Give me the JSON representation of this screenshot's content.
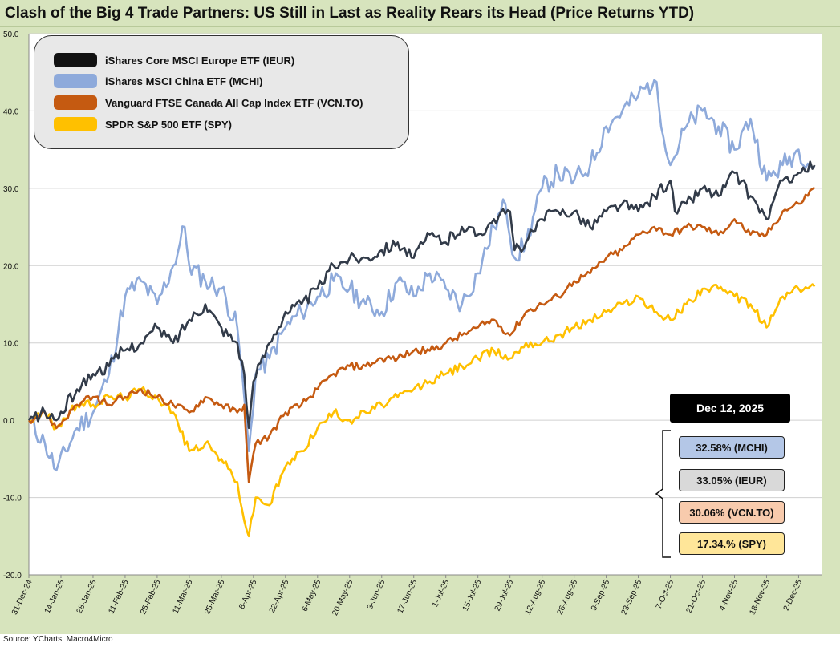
{
  "title": "Clash of the Big 4 Trade Partners: US Still in Last as Reality Rears its Head (Price Returns YTD)",
  "source": "Source: YCharts, Macro4Micro",
  "date_label": "Dec 12, 2025",
  "value_boxes": [
    {
      "text": "32.58% (MCHI)",
      "color": "#b4c7e7"
    },
    {
      "text": "33.05% (IEUR)",
      "color": "#d9d9d9"
    },
    {
      "text": "30.06% (VCN.TO)",
      "color": "#f8cbad"
    },
    {
      "text": "17.34.% (SPY)",
      "color": "#ffe699"
    }
  ],
  "colors": {
    "background": "#d7e4bd",
    "plot": "#ffffff",
    "IEUR": "#323b49",
    "MCHI": "#8eaadb",
    "VCN": "#c55a11",
    "SPY": "#ffc000"
  },
  "chart_data": {
    "type": "line",
    "title": "Clash of the Big 4 Trade Partners: US Still in Last as Reality Rears its Head (Price Returns YTD)",
    "x_ticks": [
      "31-Dec-24",
      "14-Jan-25",
      "28-Jan-25",
      "11-Feb-25",
      "25-Feb-25",
      "11-Mar-25",
      "25-Mar-25",
      "8-Apr-25",
      "22-Apr-25",
      "6-May-25",
      "20-May-25",
      "3-Jun-25",
      "17-Jun-25",
      "1-Jul-25",
      "15-Jul-25",
      "29-Jul-25",
      "12-Aug-25",
      "26-Aug-25",
      "9-Sep-25",
      "23-Sep-25",
      "7-Oct-25",
      "21-Oct-25",
      "4-Nov-25",
      "18-Nov-25",
      "2-Dec-25"
    ],
    "x_end": "12-Dec-25",
    "y_ticks": [
      "-20.0",
      "-10.0",
      "0.0",
      "10.0",
      "20.0",
      "30.0",
      "40.0",
      "50.0"
    ],
    "ylim": [
      -20,
      50
    ],
    "grid": true,
    "legend_position": "top-left",
    "series": [
      {
        "name": "iShares Core MSCI Europe ETF (IEUR)",
        "key": "IEUR",
        "points": [
          [
            0,
            0
          ],
          [
            7,
            1
          ],
          [
            12,
            0
          ],
          [
            21,
            4
          ],
          [
            28,
            6
          ],
          [
            35,
            7
          ],
          [
            41,
            9
          ],
          [
            49,
            10
          ],
          [
            56,
            12
          ],
          [
            63,
            10
          ],
          [
            70,
            13
          ],
          [
            77,
            15
          ],
          [
            84,
            12
          ],
          [
            91,
            10
          ],
          [
            94,
            6
          ],
          [
            96,
            -1
          ],
          [
            98,
            5
          ],
          [
            105,
            10
          ],
          [
            112,
            14
          ],
          [
            119,
            15
          ],
          [
            126,
            17
          ],
          [
            133,
            20
          ],
          [
            140,
            21
          ],
          [
            147,
            21
          ],
          [
            154,
            22
          ],
          [
            161,
            23
          ],
          [
            168,
            21
          ],
          [
            175,
            24
          ],
          [
            182,
            23
          ],
          [
            189,
            25
          ],
          [
            196,
            24
          ],
          [
            203,
            26
          ],
          [
            210,
            27
          ],
          [
            212,
            22
          ],
          [
            217,
            23
          ],
          [
            224,
            26
          ],
          [
            231,
            27
          ],
          [
            238,
            27
          ],
          [
            245,
            25
          ],
          [
            252,
            27
          ],
          [
            259,
            28
          ],
          [
            266,
            27
          ],
          [
            273,
            29
          ],
          [
            280,
            31
          ],
          [
            282,
            27
          ],
          [
            287,
            28
          ],
          [
            294,
            30
          ],
          [
            301,
            29
          ],
          [
            308,
            32
          ],
          [
            315,
            29
          ],
          [
            322,
            26
          ],
          [
            329,
            31
          ],
          [
            336,
            32
          ],
          [
            343,
            33
          ]
        ]
      },
      {
        "name": "iShares MSCI China ETF (MCHI)",
        "key": "MCHI",
        "points": [
          [
            0,
            0
          ],
          [
            7,
            -3
          ],
          [
            12,
            -6.5
          ],
          [
            21,
            -1
          ],
          [
            28,
            1
          ],
          [
            35,
            6
          ],
          [
            42,
            16
          ],
          [
            49,
            18
          ],
          [
            56,
            15
          ],
          [
            63,
            20
          ],
          [
            68,
            25
          ],
          [
            70,
            20
          ],
          [
            77,
            18
          ],
          [
            84,
            17
          ],
          [
            91,
            12
          ],
          [
            94,
            3
          ],
          [
            96,
            -4
          ],
          [
            99,
            6
          ],
          [
            105,
            8
          ],
          [
            112,
            12
          ],
          [
            119,
            14
          ],
          [
            126,
            16
          ],
          [
            133,
            18
          ],
          [
            140,
            17
          ],
          [
            147,
            15
          ],
          [
            154,
            14
          ],
          [
            161,
            18
          ],
          [
            168,
            16
          ],
          [
            175,
            19
          ],
          [
            182,
            17
          ],
          [
            189,
            15
          ],
          [
            196,
            19
          ],
          [
            203,
            25
          ],
          [
            208,
            28
          ],
          [
            212,
            21
          ],
          [
            217,
            23
          ],
          [
            224,
            30
          ],
          [
            231,
            32
          ],
          [
            238,
            31
          ],
          [
            245,
            33
          ],
          [
            252,
            38
          ],
          [
            259,
            40
          ],
          [
            266,
            42
          ],
          [
            273,
            44
          ],
          [
            280,
            33
          ],
          [
            287,
            38
          ],
          [
            294,
            40
          ],
          [
            301,
            38
          ],
          [
            308,
            35
          ],
          [
            315,
            39
          ],
          [
            322,
            31
          ],
          [
            329,
            33
          ],
          [
            336,
            35
          ],
          [
            343,
            32.6
          ]
        ]
      },
      {
        "name": "Vanguard FTSE Canada All Cap Index ETF (VCN.TO)",
        "key": "VCN",
        "points": [
          [
            0,
            0
          ],
          [
            7,
            1
          ],
          [
            12,
            -1
          ],
          [
            21,
            2
          ],
          [
            28,
            3
          ],
          [
            35,
            2
          ],
          [
            42,
            3
          ],
          [
            49,
            4
          ],
          [
            56,
            3
          ],
          [
            63,
            2
          ],
          [
            70,
            1
          ],
          [
            77,
            3
          ],
          [
            84,
            2
          ],
          [
            91,
            1
          ],
          [
            94,
            2
          ],
          [
            96,
            -8
          ],
          [
            99,
            -3
          ],
          [
            105,
            -2
          ],
          [
            112,
            1
          ],
          [
            119,
            2
          ],
          [
            126,
            4
          ],
          [
            133,
            6
          ],
          [
            140,
            7
          ],
          [
            147,
            7
          ],
          [
            154,
            8
          ],
          [
            161,
            8
          ],
          [
            168,
            9
          ],
          [
            175,
            9
          ],
          [
            182,
            10
          ],
          [
            189,
            11
          ],
          [
            196,
            12
          ],
          [
            203,
            13
          ],
          [
            210,
            11
          ],
          [
            217,
            14
          ],
          [
            224,
            15
          ],
          [
            231,
            16
          ],
          [
            238,
            18
          ],
          [
            245,
            19
          ],
          [
            252,
            21
          ],
          [
            259,
            22
          ],
          [
            266,
            24
          ],
          [
            273,
            25
          ],
          [
            280,
            24
          ],
          [
            287,
            25
          ],
          [
            294,
            25
          ],
          [
            301,
            24
          ],
          [
            308,
            26
          ],
          [
            315,
            24
          ],
          [
            322,
            24
          ],
          [
            329,
            27
          ],
          [
            336,
            28
          ],
          [
            343,
            30.1
          ]
        ]
      },
      {
        "name": "SPDR S&P 500 ETF (SPY)",
        "key": "SPY",
        "points": [
          [
            0,
            0
          ],
          [
            7,
            1
          ],
          [
            12,
            -1
          ],
          [
            21,
            2
          ],
          [
            28,
            2
          ],
          [
            35,
            3
          ],
          [
            42,
            3
          ],
          [
            49,
            4
          ],
          [
            56,
            3
          ],
          [
            63,
            1
          ],
          [
            70,
            -4
          ],
          [
            77,
            -3
          ],
          [
            84,
            -5
          ],
          [
            91,
            -8
          ],
          [
            94,
            -13
          ],
          [
            96,
            -15
          ],
          [
            99,
            -10
          ],
          [
            105,
            -11
          ],
          [
            112,
            -6
          ],
          [
            119,
            -4
          ],
          [
            126,
            -1
          ],
          [
            133,
            1
          ],
          [
            140,
            0
          ],
          [
            147,
            1
          ],
          [
            154,
            2
          ],
          [
            161,
            3
          ],
          [
            168,
            4
          ],
          [
            175,
            5
          ],
          [
            182,
            6
          ],
          [
            189,
            7
          ],
          [
            196,
            8
          ],
          [
            203,
            9
          ],
          [
            210,
            8
          ],
          [
            217,
            10
          ],
          [
            224,
            10
          ],
          [
            231,
            11
          ],
          [
            238,
            12
          ],
          [
            245,
            13
          ],
          [
            252,
            14
          ],
          [
            259,
            15
          ],
          [
            266,
            16
          ],
          [
            273,
            14
          ],
          [
            280,
            13
          ],
          [
            287,
            15
          ],
          [
            294,
            17
          ],
          [
            301,
            17
          ],
          [
            308,
            16
          ],
          [
            315,
            15
          ],
          [
            322,
            12
          ],
          [
            329,
            16
          ],
          [
            336,
            17
          ],
          [
            343,
            17.3
          ]
        ]
      }
    ]
  }
}
